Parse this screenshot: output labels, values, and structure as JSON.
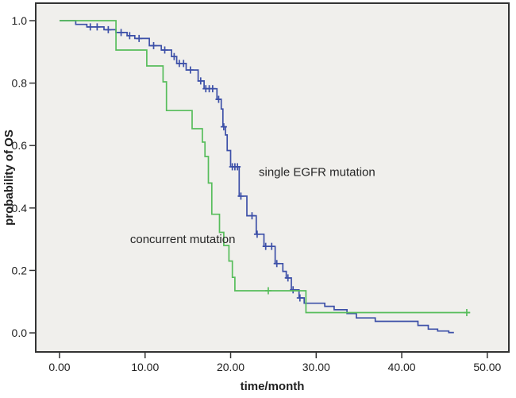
{
  "figure": {
    "background": "#ffffff",
    "plot_background": "#f0efec",
    "frame_color": "#333333",
    "tick_color": "#333333",
    "text_color": "#1f1f1f"
  },
  "chart_data": {
    "type": "line",
    "subtype": "kaplan-meier-step",
    "title": "",
    "xlabel": "time/month",
    "ylabel": "probability of OS",
    "xlim": [
      -2.78,
      52.52
    ],
    "ylim": [
      -0.061,
      1.056
    ],
    "grid": false,
    "legend_position": "inline-annotations",
    "x_ticks": {
      "values": [
        0,
        10,
        20,
        30,
        40,
        50
      ],
      "labels": [
        "0.00",
        "10.00",
        "20.00",
        "30.00",
        "40.00",
        "50.00"
      ]
    },
    "y_ticks": {
      "values": [
        0.0,
        0.2,
        0.4,
        0.6,
        0.8,
        1.0
      ],
      "labels": [
        "0.0",
        "0.2",
        "0.4",
        "0.6",
        "0.8",
        "1.0"
      ]
    },
    "series": [
      {
        "name": "single EGFR mutation",
        "color": "#3d50a8",
        "annotation": {
          "text": "single EGFR mutation",
          "x": 30.1,
          "y": 0.515
        },
        "points": [
          [
            0,
            1.0
          ],
          [
            1.9,
            0.988
          ],
          [
            3.2,
            0.98
          ],
          [
            5.2,
            0.971
          ],
          [
            6.6,
            0.962
          ],
          [
            7.9,
            0.952
          ],
          [
            8.8,
            0.943
          ],
          [
            10.5,
            0.92
          ],
          [
            11.9,
            0.906
          ],
          [
            13.1,
            0.885
          ],
          [
            13.7,
            0.863
          ],
          [
            14.8,
            0.842
          ],
          [
            16.2,
            0.807
          ],
          [
            16.9,
            0.782
          ],
          [
            18.4,
            0.748
          ],
          [
            18.9,
            0.717
          ],
          [
            19.1,
            0.66
          ],
          [
            19.4,
            0.634
          ],
          [
            19.6,
            0.584
          ],
          [
            20.0,
            0.532
          ],
          [
            21.0,
            0.438
          ],
          [
            21.9,
            0.375
          ],
          [
            23.0,
            0.316
          ],
          [
            23.9,
            0.277
          ],
          [
            25.2,
            0.222
          ],
          [
            26.1,
            0.197
          ],
          [
            26.5,
            0.176
          ],
          [
            27.1,
            0.138
          ],
          [
            28.0,
            0.112
          ],
          [
            28.6,
            0.095
          ],
          [
            31.0,
            0.085
          ],
          [
            32.1,
            0.074
          ],
          [
            33.6,
            0.062
          ],
          [
            34.7,
            0.048
          ],
          [
            36.9,
            0.037
          ],
          [
            41.9,
            0.024
          ],
          [
            43.1,
            0.012
          ],
          [
            44.2,
            0.006
          ],
          [
            45.5,
            0.001
          ]
        ],
        "end_t": 46.1,
        "censors": [
          [
            3.6,
            0.98
          ],
          [
            4.4,
            0.98
          ],
          [
            5.7,
            0.971
          ],
          [
            7.2,
            0.962
          ],
          [
            8.2,
            0.952
          ],
          [
            9.3,
            0.943
          ],
          [
            11.0,
            0.92
          ],
          [
            12.3,
            0.906
          ],
          [
            13.4,
            0.885
          ],
          [
            14.0,
            0.863
          ],
          [
            14.5,
            0.863
          ],
          [
            15.3,
            0.842
          ],
          [
            16.5,
            0.807
          ],
          [
            17.1,
            0.782
          ],
          [
            17.5,
            0.782
          ],
          [
            17.9,
            0.782
          ],
          [
            18.6,
            0.748
          ],
          [
            19.2,
            0.66
          ],
          [
            20.2,
            0.532
          ],
          [
            20.5,
            0.532
          ],
          [
            20.8,
            0.532
          ],
          [
            21.2,
            0.438
          ],
          [
            22.5,
            0.375
          ],
          [
            23.1,
            0.316
          ],
          [
            24.1,
            0.277
          ],
          [
            24.8,
            0.277
          ],
          [
            25.4,
            0.222
          ],
          [
            26.7,
            0.176
          ],
          [
            27.3,
            0.138
          ],
          [
            28.1,
            0.112
          ]
        ]
      },
      {
        "name": "concurrent mutation",
        "color": "#57bd5b",
        "annotation": {
          "text": "concurrent mutation",
          "x": 14.4,
          "y": 0.3
        },
        "points": [
          [
            0,
            1.0
          ],
          [
            6.6,
            0.906
          ],
          [
            10.2,
            0.855
          ],
          [
            12.1,
            0.804
          ],
          [
            12.5,
            0.712
          ],
          [
            15.5,
            0.654
          ],
          [
            16.7,
            0.611
          ],
          [
            17.0,
            0.565
          ],
          [
            17.4,
            0.48
          ],
          [
            17.8,
            0.38
          ],
          [
            18.7,
            0.322
          ],
          [
            19.2,
            0.28
          ],
          [
            19.8,
            0.23
          ],
          [
            20.2,
            0.178
          ],
          [
            20.5,
            0.135
          ],
          [
            28.8,
            0.065
          ]
        ],
        "end_t": 48.0,
        "censors": [
          [
            24.4,
            0.135
          ],
          [
            47.6,
            0.065
          ]
        ]
      }
    ]
  }
}
